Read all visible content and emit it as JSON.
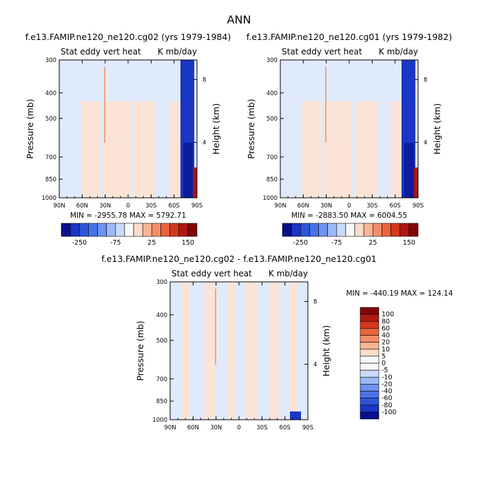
{
  "figure": {
    "title": "ANN"
  },
  "colors": {
    "neg": [
      "#0a0f8c",
      "#1a36c4",
      "#2e55d8",
      "#4a72e6",
      "#6e93ef",
      "#9cb8f6",
      "#c9dbfb"
    ],
    "neutral": "#f8f8f8",
    "pos": [
      "#fbdcc8",
      "#f9b596",
      "#f48e69",
      "#e9643f",
      "#d3381e",
      "#b01912",
      "#800608"
    ],
    "field_light_blue": "#dfeafc",
    "field_light_orange": "#fbe4d6",
    "field_orange_streak": "#f3a27e",
    "field_dark_blue": "#0d1d9e",
    "field_dark_red": "#a91614"
  },
  "chart_data": [
    {
      "type": "heatmap",
      "title": "f.e13.FAMIP.ne120_ne120.cg02 (yrs 1979-1984)",
      "subtitle_left": "Stat eddy vert heat",
      "subtitle_right": "K mb/day",
      "ylabel": "Pressure (mb)",
      "ylabel_right": "Height (km)",
      "x_ticks": [
        "90N",
        "60N",
        "30N",
        "0",
        "30S",
        "60S",
        "90S"
      ],
      "y_ticks": [
        "300",
        "400",
        "500",
        "700",
        "850",
        "1000"
      ],
      "y_right_ticks": [
        "8",
        "4"
      ],
      "x_range": [
        "90N",
        "90S"
      ],
      "y_range": [
        300,
        1000
      ],
      "y_scale": "log",
      "min_max": "MIN = -2955.78   MAX = 5792.71",
      "colorbar": {
        "orientation": "horizontal",
        "labels": [
          "-250",
          "-75",
          "25",
          "150"
        ]
      }
    },
    {
      "type": "heatmap",
      "title": "f.e13.FAMIP.ne120_ne120.cg01 (yrs 1979-1982)",
      "subtitle_left": "Stat eddy vert heat",
      "subtitle_right": "K mb/day",
      "ylabel": "Pressure (mb)",
      "ylabel_right": "Height (km)",
      "x_ticks": [
        "90N",
        "60N",
        "30N",
        "0",
        "30S",
        "60S",
        "90S"
      ],
      "y_ticks": [
        "300",
        "400",
        "500",
        "700",
        "850",
        "1000"
      ],
      "y_right_ticks": [
        "8",
        "4"
      ],
      "x_range": [
        "90N",
        "90S"
      ],
      "y_range": [
        300,
        1000
      ],
      "y_scale": "log",
      "min_max": "MIN = -2883.50   MAX = 6004.55",
      "colorbar": {
        "orientation": "horizontal",
        "labels": [
          "-250",
          "-75",
          "25",
          "150"
        ]
      }
    },
    {
      "type": "heatmap",
      "title": "f.e13.FAMIP.ne120_ne120.cg02 - f.e13.FAMIP.ne120_ne120.cg01",
      "subtitle_left": "Stat eddy vert heat",
      "subtitle_right": "K mb/day",
      "ylabel": "Pressure (mb)",
      "ylabel_right": "Height (km)",
      "x_ticks": [
        "90N",
        "60N",
        "30N",
        "0",
        "30S",
        "60S",
        "90S"
      ],
      "y_ticks": [
        "300",
        "400",
        "500",
        "700",
        "850",
        "1000"
      ],
      "y_right_ticks": [
        "8",
        "4"
      ],
      "x_range": [
        "90N",
        "90S"
      ],
      "y_range": [
        300,
        1000
      ],
      "y_scale": "log",
      "min_max": "MIN = -440.19   MAX = 124.14",
      "colorbar": {
        "orientation": "vertical",
        "labels": [
          "100",
          "80",
          "60",
          "40",
          "20",
          "10",
          "5",
          "0",
          "-5",
          "-10",
          "-20",
          "-40",
          "-60",
          "-80",
          "-100"
        ]
      }
    }
  ]
}
